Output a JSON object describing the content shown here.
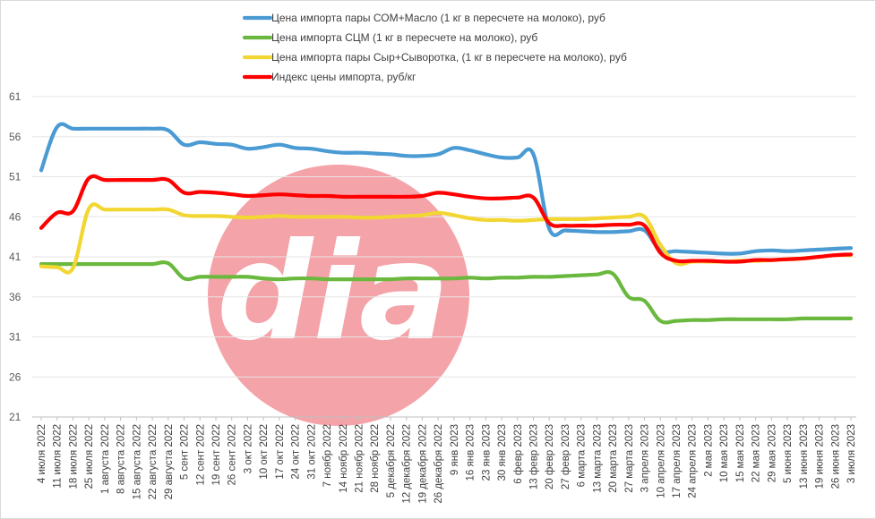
{
  "chart_data": {
    "type": "line",
    "ylim": [
      21,
      61
    ],
    "yticks": [
      21,
      26,
      31,
      36,
      41,
      46,
      51,
      56,
      61
    ],
    "grid": "horizontal",
    "legend_position": "top-center",
    "categories": [
      "4 июля 2022",
      "11 июля 2022",
      "18 июля 2022",
      "25 июля 2022",
      "1 августа 2022",
      "8 августа 2022",
      "15 августа 2022",
      "22 августа 2022",
      "29 августа 2022",
      "5 сент 2022",
      "12 сент 2022",
      "19 сент 2022",
      "26 сент 2022",
      "3 окт 2022",
      "10 окт 2022",
      "17 окт 2022",
      "24 окт 2022",
      "31 окт 2022",
      "7 ноябр 2022",
      "14 ноябр 2022",
      "21 ноябр 2022",
      "28 ноябр 2022",
      "5 декабря 2022",
      "12 декабря 2022",
      "19 декабря 2022",
      "26 декабря 2022",
      "9 янв 2023",
      "16 янв 2023",
      "23 янв 2023",
      "30 янв 2023",
      "6 февр 2023",
      "13 февр 2023",
      "20 февр 2023",
      "27 февр 2023",
      "6 марта 2023",
      "13 марта 2023",
      "20 марта 2023",
      "27 марта 2023",
      "3 апреля 2023",
      "10 апреля 2023",
      "17 апреля 2023",
      "24 апреля 2023",
      "2 мая 2023",
      "10 мая 2023",
      "15 мая 2023",
      "22 мая 2023",
      "29 мая 2023",
      "5 июня 2023",
      "13 июня 2023",
      "19 июня 2023",
      "26 июня 2023",
      "3 июля 2023"
    ],
    "series": [
      {
        "name": "Цена импорта пары СОМ+Масло  (1 кг в пересчете на молоко), руб",
        "color": "#4a9ad4",
        "values": [
          51.8,
          57.2,
          57.0,
          57.0,
          57.0,
          57.0,
          57.0,
          57.0,
          56.8,
          55.0,
          55.3,
          55.1,
          55.0,
          54.5,
          54.7,
          55.0,
          54.6,
          54.5,
          54.2,
          54.0,
          54.0,
          53.9,
          53.8,
          53.6,
          53.6,
          53.8,
          54.6,
          54.3,
          53.8,
          53.4,
          53.4,
          53.8,
          44.5,
          44.3,
          44.2,
          44.1,
          44.1,
          44.2,
          44.3,
          41.8,
          41.7,
          41.6,
          41.5,
          41.4,
          41.4,
          41.7,
          41.8,
          41.7,
          41.8,
          41.9,
          42.0,
          42.1
        ]
      },
      {
        "name": "Цена импорта СЦМ (1 кг в пересчете на молоко), руб",
        "color": "#6ab93e",
        "values": [
          40.1,
          40.1,
          40.1,
          40.1,
          40.1,
          40.1,
          40.1,
          40.1,
          40.2,
          38.3,
          38.5,
          38.5,
          38.5,
          38.5,
          38.3,
          38.2,
          38.3,
          38.3,
          38.2,
          38.2,
          38.2,
          38.2,
          38.2,
          38.3,
          38.3,
          38.3,
          38.3,
          38.4,
          38.3,
          38.4,
          38.4,
          38.5,
          38.5,
          38.6,
          38.7,
          38.8,
          38.9,
          36.0,
          35.5,
          33.0,
          33.0,
          33.1,
          33.1,
          33.2,
          33.2,
          33.2,
          33.2,
          33.2,
          33.3,
          33.3,
          33.3,
          33.3
        ]
      },
      {
        "name": "Цена импорта пары Сыр+Сыворотка, (1 кг в пересчете на молоко), руб",
        "color": "#f2d632",
        "values": [
          39.8,
          39.7,
          39.6,
          47.0,
          46.9,
          46.9,
          46.9,
          46.9,
          46.9,
          46.2,
          46.1,
          46.1,
          46.0,
          45.9,
          46.0,
          46.1,
          46.0,
          46.0,
          46.0,
          46.0,
          45.9,
          45.9,
          46.0,
          46.1,
          46.2,
          46.5,
          46.2,
          45.8,
          45.6,
          45.6,
          45.5,
          45.6,
          45.7,
          45.7,
          45.7,
          45.8,
          45.9,
          46.0,
          46.0,
          42.5,
          40.2,
          40.4,
          40.4,
          40.4,
          40.5,
          40.5,
          40.6,
          40.7,
          40.8,
          41.0,
          41.2,
          41.2
        ]
      },
      {
        "name": "Индекс цены импорта, руб/кг",
        "color": "#ff0000",
        "values": [
          44.6,
          46.5,
          46.7,
          50.8,
          50.6,
          50.6,
          50.6,
          50.6,
          50.6,
          49.0,
          49.1,
          49.0,
          48.8,
          48.6,
          48.7,
          48.8,
          48.7,
          48.6,
          48.6,
          48.5,
          48.5,
          48.5,
          48.5,
          48.5,
          48.6,
          49.0,
          48.8,
          48.5,
          48.3,
          48.3,
          48.4,
          48.4,
          45.2,
          44.9,
          44.9,
          44.9,
          45.0,
          45.0,
          44.9,
          41.5,
          40.5,
          40.5,
          40.5,
          40.4,
          40.4,
          40.6,
          40.6,
          40.7,
          40.8,
          41.0,
          41.2,
          41.3
        ]
      }
    ]
  },
  "watermark": {
    "text": "dia",
    "circle_color": "#f4a3a8"
  }
}
